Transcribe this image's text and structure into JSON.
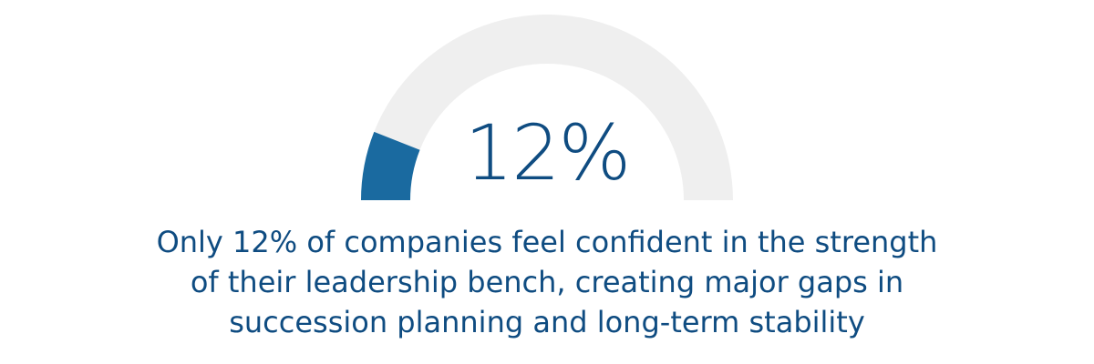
{
  "colors": {
    "track": "#efefef",
    "fill": "#1a6aa0",
    "text": "#0f4c81"
  },
  "chart_data": {
    "type": "gauge",
    "value": 12,
    "max": 100,
    "unit": "%",
    "value_label": "12%",
    "caption_lines": [
      "Only 12% of companies feel confident in the strength",
      "of their leadership bench, creating major gaps in",
      "succession planning and long-term stability"
    ]
  }
}
